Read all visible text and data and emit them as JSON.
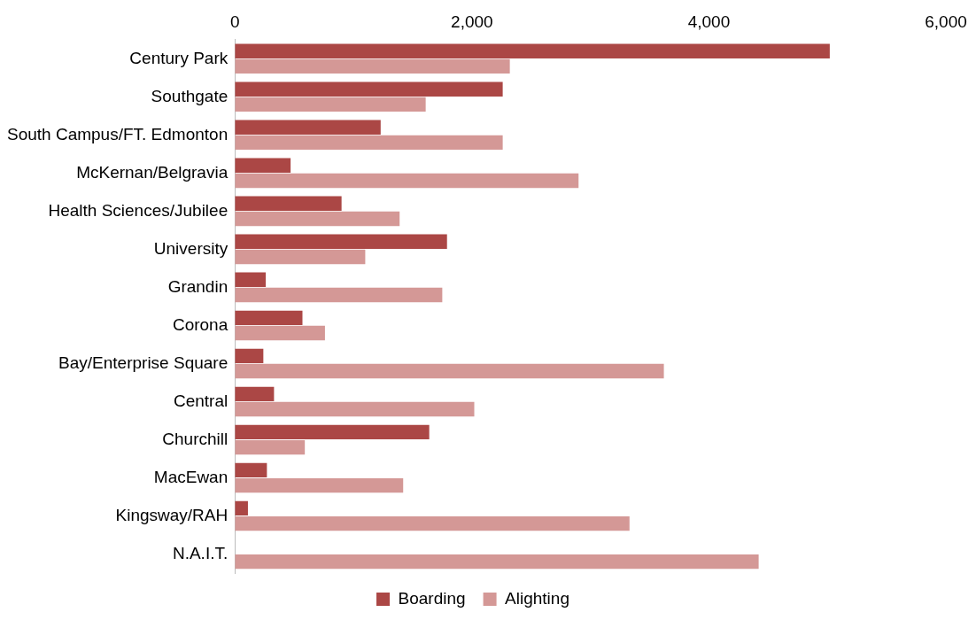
{
  "chart_data": {
    "type": "bar",
    "orientation": "horizontal",
    "categories": [
      "Century Park",
      "Southgate",
      "South Campus/FT. Edmonton",
      "McKernan/Belgravia",
      "Health Sciences/Jubilee",
      "University",
      "Grandin",
      "Corona",
      "Bay/Enterprise Square",
      "Central",
      "Churchill",
      "MacEwan",
      "Kingsway/RAH",
      "N.A.I.T."
    ],
    "series": [
      {
        "name": "Boarding",
        "color": "#ab4745",
        "values": [
          5020,
          2260,
          1230,
          470,
          900,
          1790,
          260,
          570,
          240,
          330,
          1640,
          270,
          110,
          0
        ]
      },
      {
        "name": "Alighting",
        "color": "#d49896",
        "values": [
          2320,
          1610,
          2260,
          2900,
          1390,
          1100,
          1750,
          760,
          3620,
          2020,
          590,
          1420,
          3330,
          4420
        ]
      }
    ],
    "xlim": [
      0,
      6000
    ],
    "xticks": [
      {
        "value": 0,
        "label": "0"
      },
      {
        "value": 2000,
        "label": "2,000"
      },
      {
        "value": 4000,
        "label": "4,000"
      },
      {
        "value": 6000,
        "label": "6,000"
      }
    ],
    "grid": false,
    "legend": "bottom"
  }
}
